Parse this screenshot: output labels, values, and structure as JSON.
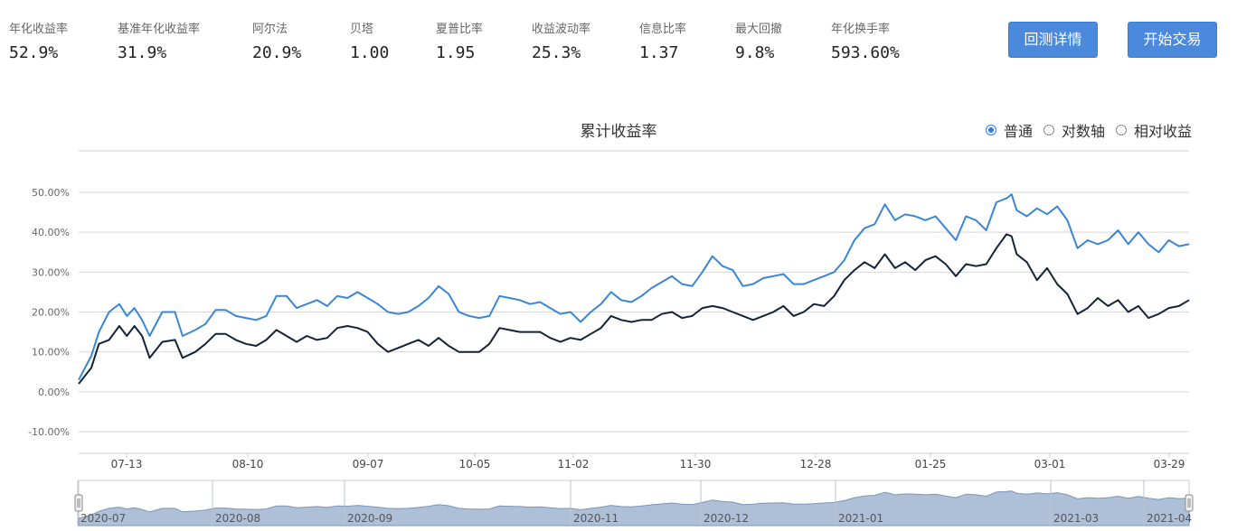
{
  "metrics": [
    {
      "label": "年化收益率",
      "value": "52.9%"
    },
    {
      "label": "基准年化收益率",
      "value": "31.9%"
    },
    {
      "label": "阿尔法",
      "value": "20.9%"
    },
    {
      "label": "贝塔",
      "value": "1.00"
    },
    {
      "label": "夏普比率",
      "value": "1.95"
    },
    {
      "label": "收益波动率",
      "value": "25.3%"
    },
    {
      "label": "信息比率",
      "value": "1.37"
    },
    {
      "label": "最大回撤",
      "value": "9.8%"
    },
    {
      "label": "年化换手率",
      "value": "593.60%"
    }
  ],
  "buttons": {
    "details": "回测详情",
    "trade": "开始交易"
  },
  "scale_options": {
    "normal": "普通",
    "log": "对数轴",
    "relative": "相对收益",
    "selected": "normal"
  },
  "colors": {
    "strategy": "#3a86d6",
    "benchmark": "#13233a",
    "accent": "#4a89dc",
    "navigator_fill": "#aec0d8"
  },
  "chart_data": {
    "type": "line",
    "title": "累计收益率",
    "ylim": [
      -0.1,
      0.5
    ],
    "yticks": [
      "-10.00%",
      "0.00%",
      "10.00%",
      "20.00%",
      "30.00%",
      "40.00%",
      "50.00%"
    ],
    "ytick_values": [
      -0.1,
      0,
      0.1,
      0.2,
      0.3,
      0.4,
      0.5
    ],
    "grid": true,
    "xticks": [
      "07-13",
      "08-10",
      "09-07",
      "10-05",
      "11-02",
      "11-30",
      "12-28",
      "01-25",
      "03-01",
      "03-29"
    ],
    "navigator_labels": [
      "2020-07",
      "2020-08",
      "2020-09",
      "2020-11",
      "2020-12",
      "2021-01",
      "2021-03",
      "2021-04"
    ],
    "series": [
      {
        "key": "strategy",
        "points": [
          [
            0,
            0.03
          ],
          [
            5,
            0.09
          ],
          [
            8,
            0.15
          ],
          [
            12,
            0.2
          ],
          [
            16,
            0.22
          ],
          [
            19,
            0.19
          ],
          [
            22,
            0.21
          ],
          [
            25,
            0.18
          ],
          [
            28,
            0.14
          ],
          [
            33,
            0.2
          ],
          [
            38,
            0.2
          ],
          [
            41,
            0.14
          ],
          [
            46,
            0.155
          ],
          [
            50,
            0.17
          ],
          [
            54,
            0.205
          ],
          [
            58,
            0.205
          ],
          [
            62,
            0.19
          ],
          [
            66,
            0.185
          ],
          [
            70,
            0.18
          ],
          [
            74,
            0.19
          ],
          [
            78,
            0.24
          ],
          [
            82,
            0.24
          ],
          [
            86,
            0.21
          ],
          [
            90,
            0.22
          ],
          [
            94,
            0.23
          ],
          [
            98,
            0.215
          ],
          [
            102,
            0.24
          ],
          [
            106,
            0.235
          ],
          [
            110,
            0.25
          ],
          [
            114,
            0.235
          ],
          [
            118,
            0.22
          ],
          [
            122,
            0.2
          ],
          [
            126,
            0.195
          ],
          [
            130,
            0.2
          ],
          [
            134,
            0.215
          ],
          [
            138,
            0.235
          ],
          [
            142,
            0.265
          ],
          [
            146,
            0.245
          ],
          [
            150,
            0.2
          ],
          [
            154,
            0.19
          ],
          [
            158,
            0.185
          ],
          [
            162,
            0.19
          ],
          [
            166,
            0.24
          ],
          [
            170,
            0.235
          ],
          [
            174,
            0.23
          ],
          [
            178,
            0.22
          ],
          [
            182,
            0.225
          ],
          [
            186,
            0.21
          ],
          [
            190,
            0.195
          ],
          [
            194,
            0.2
          ],
          [
            198,
            0.175
          ],
          [
            202,
            0.2
          ],
          [
            206,
            0.22
          ],
          [
            210,
            0.25
          ],
          [
            214,
            0.23
          ],
          [
            218,
            0.225
          ],
          [
            222,
            0.24
          ],
          [
            226,
            0.26
          ],
          [
            230,
            0.275
          ],
          [
            234,
            0.29
          ],
          [
            238,
            0.27
          ],
          [
            242,
            0.265
          ],
          [
            246,
            0.3
          ],
          [
            250,
            0.34
          ],
          [
            254,
            0.315
          ],
          [
            258,
            0.305
          ],
          [
            262,
            0.265
          ],
          [
            266,
            0.27
          ],
          [
            270,
            0.285
          ],
          [
            274,
            0.29
          ],
          [
            278,
            0.295
          ],
          [
            282,
            0.27
          ],
          [
            286,
            0.27
          ],
          [
            290,
            0.28
          ],
          [
            294,
            0.29
          ],
          [
            298,
            0.3
          ],
          [
            302,
            0.33
          ],
          [
            306,
            0.38
          ],
          [
            310,
            0.41
          ],
          [
            314,
            0.42
          ],
          [
            318,
            0.47
          ],
          [
            322,
            0.43
          ],
          [
            326,
            0.445
          ],
          [
            330,
            0.44
          ],
          [
            334,
            0.43
          ],
          [
            338,
            0.44
          ],
          [
            342,
            0.41
          ],
          [
            346,
            0.38
          ],
          [
            350,
            0.44
          ],
          [
            354,
            0.43
          ],
          [
            358,
            0.405
          ],
          [
            362,
            0.475
          ],
          [
            366,
            0.485
          ],
          [
            368,
            0.495
          ],
          [
            370,
            0.455
          ],
          [
            374,
            0.44
          ],
          [
            378,
            0.46
          ],
          [
            382,
            0.445
          ],
          [
            386,
            0.465
          ],
          [
            390,
            0.43
          ],
          [
            394,
            0.36
          ],
          [
            398,
            0.38
          ],
          [
            402,
            0.37
          ],
          [
            406,
            0.38
          ],
          [
            410,
            0.405
          ],
          [
            414,
            0.37
          ],
          [
            418,
            0.4
          ],
          [
            422,
            0.37
          ],
          [
            426,
            0.35
          ],
          [
            430,
            0.38
          ],
          [
            434,
            0.365
          ],
          [
            438,
            0.37
          ]
        ]
      },
      {
        "key": "benchmark",
        "points": [
          [
            0,
            0.02
          ],
          [
            5,
            0.06
          ],
          [
            8,
            0.12
          ],
          [
            12,
            0.13
          ],
          [
            16,
            0.165
          ],
          [
            19,
            0.14
          ],
          [
            22,
            0.165
          ],
          [
            25,
            0.14
          ],
          [
            28,
            0.085
          ],
          [
            33,
            0.125
          ],
          [
            38,
            0.13
          ],
          [
            41,
            0.085
          ],
          [
            46,
            0.1
          ],
          [
            50,
            0.12
          ],
          [
            54,
            0.145
          ],
          [
            58,
            0.145
          ],
          [
            62,
            0.13
          ],
          [
            66,
            0.12
          ],
          [
            70,
            0.115
          ],
          [
            74,
            0.13
          ],
          [
            78,
            0.155
          ],
          [
            82,
            0.14
          ],
          [
            86,
            0.125
          ],
          [
            90,
            0.14
          ],
          [
            94,
            0.13
          ],
          [
            98,
            0.135
          ],
          [
            102,
            0.16
          ],
          [
            106,
            0.165
          ],
          [
            110,
            0.16
          ],
          [
            114,
            0.15
          ],
          [
            118,
            0.12
          ],
          [
            122,
            0.1
          ],
          [
            126,
            0.11
          ],
          [
            130,
            0.12
          ],
          [
            134,
            0.13
          ],
          [
            138,
            0.115
          ],
          [
            142,
            0.135
          ],
          [
            146,
            0.115
          ],
          [
            150,
            0.1
          ],
          [
            154,
            0.1
          ],
          [
            158,
            0.1
          ],
          [
            162,
            0.12
          ],
          [
            166,
            0.16
          ],
          [
            170,
            0.155
          ],
          [
            174,
            0.15
          ],
          [
            178,
            0.15
          ],
          [
            182,
            0.15
          ],
          [
            186,
            0.135
          ],
          [
            190,
            0.125
          ],
          [
            194,
            0.135
          ],
          [
            198,
            0.13
          ],
          [
            202,
            0.145
          ],
          [
            206,
            0.16
          ],
          [
            210,
            0.19
          ],
          [
            214,
            0.18
          ],
          [
            218,
            0.175
          ],
          [
            222,
            0.18
          ],
          [
            226,
            0.18
          ],
          [
            230,
            0.195
          ],
          [
            234,
            0.2
          ],
          [
            238,
            0.185
          ],
          [
            242,
            0.19
          ],
          [
            246,
            0.21
          ],
          [
            250,
            0.215
          ],
          [
            254,
            0.21
          ],
          [
            258,
            0.2
          ],
          [
            262,
            0.19
          ],
          [
            266,
            0.18
          ],
          [
            270,
            0.19
          ],
          [
            274,
            0.2
          ],
          [
            278,
            0.215
          ],
          [
            282,
            0.19
          ],
          [
            286,
            0.2
          ],
          [
            290,
            0.22
          ],
          [
            294,
            0.215
          ],
          [
            298,
            0.24
          ],
          [
            302,
            0.28
          ],
          [
            306,
            0.305
          ],
          [
            310,
            0.325
          ],
          [
            314,
            0.31
          ],
          [
            318,
            0.345
          ],
          [
            322,
            0.31
          ],
          [
            326,
            0.325
          ],
          [
            330,
            0.305
          ],
          [
            334,
            0.33
          ],
          [
            338,
            0.34
          ],
          [
            342,
            0.32
          ],
          [
            346,
            0.29
          ],
          [
            350,
            0.32
          ],
          [
            354,
            0.315
          ],
          [
            358,
            0.32
          ],
          [
            362,
            0.36
          ],
          [
            366,
            0.395
          ],
          [
            368,
            0.39
          ],
          [
            370,
            0.345
          ],
          [
            374,
            0.325
          ],
          [
            378,
            0.28
          ],
          [
            382,
            0.31
          ],
          [
            386,
            0.27
          ],
          [
            390,
            0.245
          ],
          [
            394,
            0.195
          ],
          [
            398,
            0.21
          ],
          [
            402,
            0.235
          ],
          [
            406,
            0.215
          ],
          [
            410,
            0.23
          ],
          [
            414,
            0.2
          ],
          [
            418,
            0.215
          ],
          [
            422,
            0.185
          ],
          [
            426,
            0.195
          ],
          [
            430,
            0.21
          ],
          [
            434,
            0.215
          ],
          [
            438,
            0.23
          ]
        ]
      }
    ]
  }
}
